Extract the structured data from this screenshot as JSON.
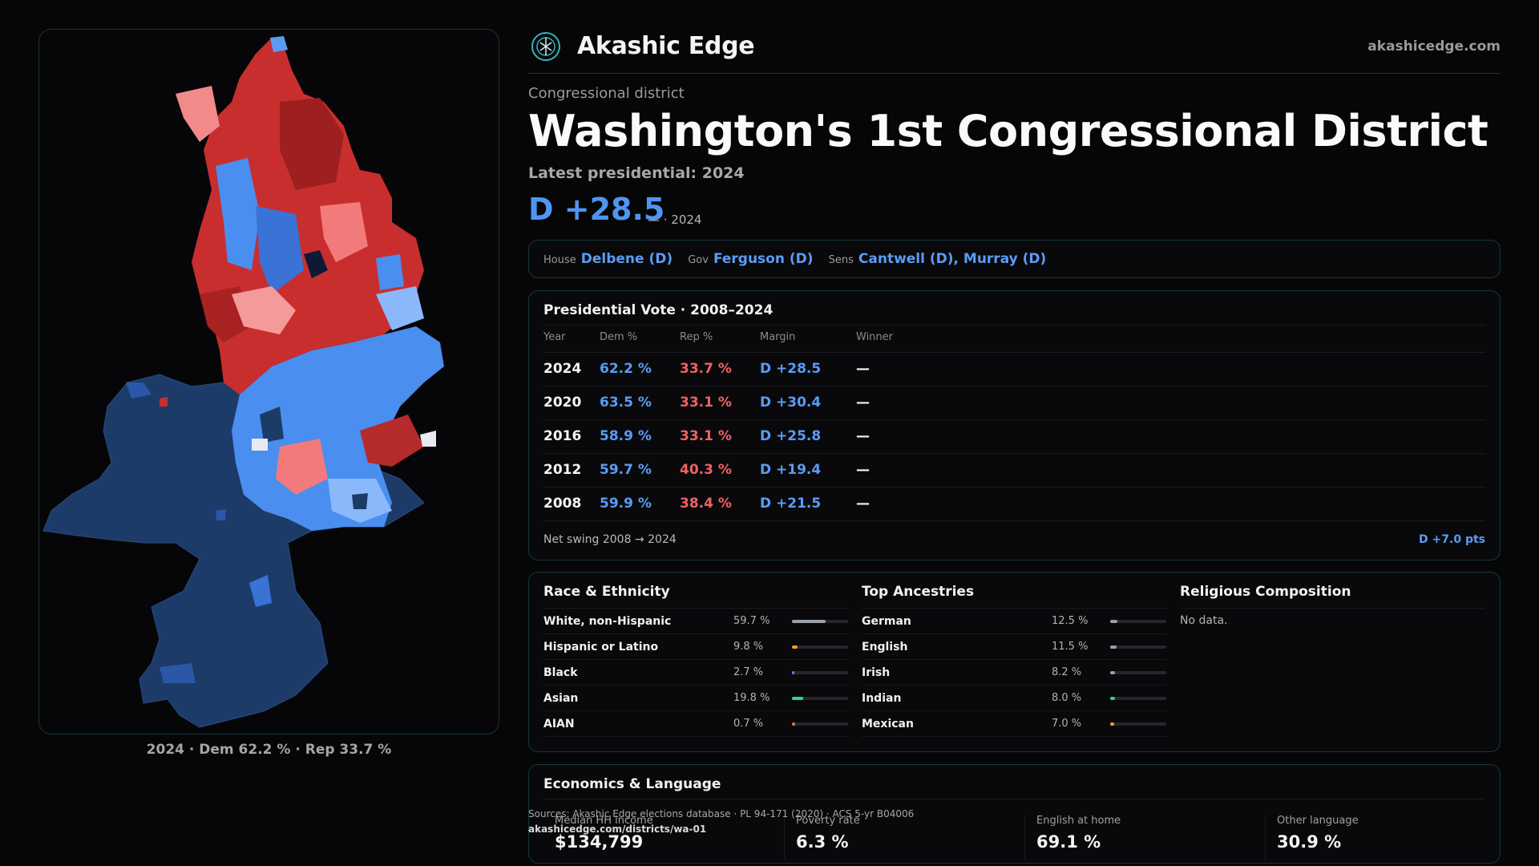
{
  "header": {
    "brand": "Akashic Edge",
    "site_url": "akashicedge.com"
  },
  "district": {
    "kicker": "Congressional district",
    "title": "Washington's 1st Congressional District",
    "latest_label": "Latest presidential: 2024",
    "margin": "D +28.5",
    "margin_year": "— · 2024"
  },
  "officials": [
    {
      "label": "House",
      "value": "Delbene (D)"
    },
    {
      "label": "Gov",
      "value": "Ferguson (D)"
    },
    {
      "label": "Sens",
      "value": "Cantwell (D), Murray (D)"
    }
  ],
  "presidential": {
    "title": "Presidential Vote · 2008–2024",
    "headers": [
      "Year",
      "Dem %",
      "Rep %",
      "Margin",
      "Winner"
    ],
    "rows": [
      {
        "year": "2024",
        "dem": "62.2 %",
        "rep": "33.7 %",
        "margin": "D +28.5",
        "winner": "—"
      },
      {
        "year": "2020",
        "dem": "63.5 %",
        "rep": "33.1 %",
        "margin": "D +30.4",
        "winner": "—"
      },
      {
        "year": "2016",
        "dem": "58.9 %",
        "rep": "33.1 %",
        "margin": "D +25.8",
        "winner": "—"
      },
      {
        "year": "2012",
        "dem": "59.7 %",
        "rep": "40.3 %",
        "margin": "D +19.4",
        "winner": "—"
      },
      {
        "year": "2008",
        "dem": "59.9 %",
        "rep": "38.4 %",
        "margin": "D +21.5",
        "winner": "—"
      }
    ],
    "net_swing_label": "Net swing 2008 → 2024",
    "net_swing_value": "D +7.0 pts"
  },
  "race": {
    "title": "Race & Ethnicity",
    "rows": [
      {
        "label": "White, non-Hispanic",
        "pct": "59.7 %",
        "value": 59.7,
        "color": "#9aa0aa"
      },
      {
        "label": "Hispanic or Latino",
        "pct": "9.8 %",
        "value": 9.8,
        "color": "#f0a020"
      },
      {
        "label": "Black",
        "pct": "2.7 %",
        "value": 2.7,
        "color": "#6e7dff"
      },
      {
        "label": "Asian",
        "pct": "19.8 %",
        "value": 19.8,
        "color": "#2fd39a"
      },
      {
        "label": "AIAN",
        "pct": "0.7 %",
        "value": 0.7,
        "color": "#e07a3a"
      }
    ]
  },
  "ancestry": {
    "title": "Top Ancestries",
    "rows": [
      {
        "label": "German",
        "pct": "12.5 %",
        "value": 12.5,
        "color": "#9aa0aa"
      },
      {
        "label": "English",
        "pct": "11.5 %",
        "value": 11.5,
        "color": "#9aa0aa"
      },
      {
        "label": "Irish",
        "pct": "8.2 %",
        "value": 8.2,
        "color": "#9aa0aa"
      },
      {
        "label": "Indian",
        "pct": "8.0 %",
        "value": 8.0,
        "color": "#2fd39a"
      },
      {
        "label": "Mexican",
        "pct": "7.0 %",
        "value": 7.0,
        "color": "#f0a020"
      }
    ]
  },
  "religion": {
    "title": "Religious Composition",
    "no_data": "No data."
  },
  "economics": {
    "title": "Economics & Language",
    "stats": [
      {
        "label": "Median HH income",
        "value": "$134,799"
      },
      {
        "label": "Poverty rate",
        "value": "6.3 %"
      },
      {
        "label": "English at home",
        "value": "69.1 %"
      },
      {
        "label": "Other language",
        "value": "30.9 %"
      }
    ]
  },
  "sources": {
    "line1": "Sources: Akashic Edge elections database · PL 94-171 (2020) · ACS 5-yr B04006",
    "line2": "akashicedge.com/districts/wa-01"
  },
  "map": {
    "caption": "2024 · Dem 62.2 % · Rep 33.7 %"
  },
  "colors": {
    "dem": "#5a9cf5",
    "rep": "#ef6262",
    "accent_border": "#15373b"
  }
}
